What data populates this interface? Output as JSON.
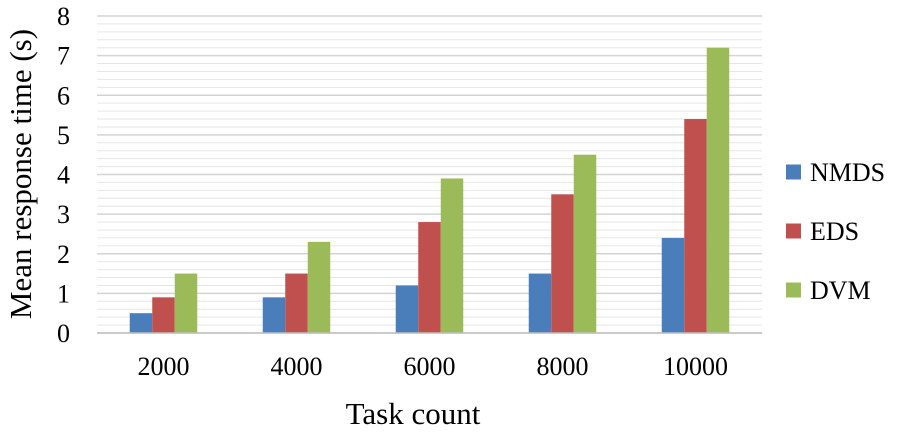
{
  "chart_data": {
    "type": "bar",
    "categories": [
      "2000",
      "4000",
      "6000",
      "8000",
      "10000"
    ],
    "series": [
      {
        "name": "NMDS",
        "color": "#4a7ebb",
        "values": [
          0.5,
          0.9,
          1.2,
          1.5,
          2.4
        ]
      },
      {
        "name": "EDS",
        "color": "#c0504d",
        "values": [
          0.9,
          1.5,
          2.8,
          3.5,
          5.4
        ]
      },
      {
        "name": "DVM",
        "color": "#9bbb59",
        "values": [
          1.5,
          2.3,
          3.9,
          4.5,
          7.2
        ]
      }
    ],
    "xlabel": "Task count",
    "ylabel": "Mean response time (s)",
    "ylim": [
      0,
      8
    ],
    "yticks": [
      0,
      1,
      2,
      3,
      4,
      5,
      6,
      7,
      8
    ],
    "minor_grid_step": 0.2,
    "grid": true,
    "legend_position": "right"
  }
}
